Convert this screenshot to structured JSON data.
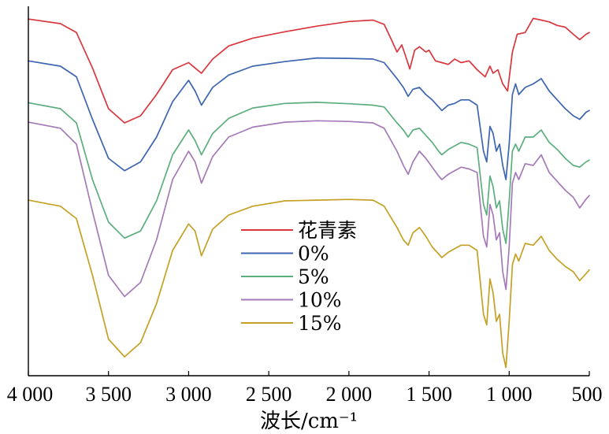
{
  "chart_data": {
    "type": "line",
    "title": "",
    "xlabel": "波长/cm⁻¹",
    "ylabel": "",
    "xlim": [
      4000,
      500
    ],
    "x_reversed": true,
    "x_ticks": [
      4000,
      3500,
      3000,
      2500,
      2000,
      1500,
      1000,
      500
    ],
    "x_tick_labels": [
      "4 000",
      "3 500",
      "3 000",
      "2 500",
      "2 000",
      "1 500",
      "1 000",
      "500"
    ],
    "ylim": [
      0,
      1
    ],
    "y_ticks_shown": false,
    "grid": false,
    "legend_position": "center",
    "series": [
      {
        "name": "花青素",
        "color": "#d9363e",
        "points": [
          [
            4000,
            0.973
          ],
          [
            3800,
            0.96
          ],
          [
            3700,
            0.935
          ],
          [
            3600,
            0.835
          ],
          [
            3500,
            0.72
          ],
          [
            3400,
            0.68
          ],
          [
            3300,
            0.7
          ],
          [
            3200,
            0.76
          ],
          [
            3100,
            0.83
          ],
          [
            3000,
            0.85
          ],
          [
            2960,
            0.835
          ],
          [
            2920,
            0.82
          ],
          [
            2850,
            0.86
          ],
          [
            2750,
            0.897
          ],
          [
            2600,
            0.919
          ],
          [
            2400,
            0.937
          ],
          [
            2200,
            0.953
          ],
          [
            2000,
            0.966
          ],
          [
            1850,
            0.97
          ],
          [
            1780,
            0.958
          ],
          [
            1730,
            0.91
          ],
          [
            1700,
            0.88
          ],
          [
            1670,
            0.9
          ],
          [
            1640,
            0.86
          ],
          [
            1620,
            0.832
          ],
          [
            1590,
            0.885
          ],
          [
            1560,
            0.895
          ],
          [
            1520,
            0.88
          ],
          [
            1500,
            0.885
          ],
          [
            1460,
            0.855
          ],
          [
            1420,
            0.85
          ],
          [
            1380,
            0.845
          ],
          [
            1340,
            0.86
          ],
          [
            1300,
            0.85
          ],
          [
            1250,
            0.855
          ],
          [
            1200,
            0.83
          ],
          [
            1150,
            0.81
          ],
          [
            1120,
            0.84
          ],
          [
            1100,
            0.82
          ],
          [
            1070,
            0.83
          ],
          [
            1040,
            0.79
          ],
          [
            1010,
            0.77
          ],
          [
            980,
            0.88
          ],
          [
            950,
            0.93
          ],
          [
            900,
            0.935
          ],
          [
            850,
            0.975
          ],
          [
            800,
            0.97
          ],
          [
            750,
            0.965
          ],
          [
            700,
            0.955
          ],
          [
            650,
            0.95
          ],
          [
            600,
            0.93
          ],
          [
            560,
            0.915
          ],
          [
            520,
            0.93
          ],
          [
            500,
            0.935
          ]
        ]
      },
      {
        "name": "0%",
        "color": "#3d65b0",
        "points": [
          [
            4000,
            0.855
          ],
          [
            3800,
            0.84
          ],
          [
            3700,
            0.81
          ],
          [
            3600,
            0.69
          ],
          [
            3500,
            0.58
          ],
          [
            3400,
            0.545
          ],
          [
            3300,
            0.57
          ],
          [
            3200,
            0.64
          ],
          [
            3100,
            0.74
          ],
          [
            3000,
            0.8
          ],
          [
            2960,
            0.77
          ],
          [
            2920,
            0.73
          ],
          [
            2850,
            0.78
          ],
          [
            2750,
            0.815
          ],
          [
            2600,
            0.84
          ],
          [
            2400,
            0.853
          ],
          [
            2200,
            0.863
          ],
          [
            2000,
            0.862
          ],
          [
            1850,
            0.86
          ],
          [
            1780,
            0.85
          ],
          [
            1700,
            0.805
          ],
          [
            1660,
            0.78
          ],
          [
            1630,
            0.755
          ],
          [
            1600,
            0.775
          ],
          [
            1560,
            0.78
          ],
          [
            1520,
            0.76
          ],
          [
            1480,
            0.745
          ],
          [
            1440,
            0.725
          ],
          [
            1420,
            0.715
          ],
          [
            1380,
            0.73
          ],
          [
            1340,
            0.735
          ],
          [
            1300,
            0.745
          ],
          [
            1250,
            0.745
          ],
          [
            1200,
            0.73
          ],
          [
            1160,
            0.6
          ],
          [
            1140,
            0.57
          ],
          [
            1120,
            0.67
          ],
          [
            1100,
            0.65
          ],
          [
            1080,
            0.6
          ],
          [
            1060,
            0.62
          ],
          [
            1040,
            0.56
          ],
          [
            1020,
            0.52
          ],
          [
            1000,
            0.62
          ],
          [
            980,
            0.76
          ],
          [
            960,
            0.79
          ],
          [
            940,
            0.76
          ],
          [
            900,
            0.78
          ],
          [
            850,
            0.79
          ],
          [
            800,
            0.805
          ],
          [
            750,
            0.77
          ],
          [
            700,
            0.745
          ],
          [
            650,
            0.72
          ],
          [
            600,
            0.7
          ],
          [
            560,
            0.69
          ],
          [
            520,
            0.71
          ],
          [
            500,
            0.715
          ]
        ]
      },
      {
        "name": "5%",
        "color": "#5dae7e",
        "points": [
          [
            4000,
            0.737
          ],
          [
            3800,
            0.72
          ],
          [
            3700,
            0.68
          ],
          [
            3600,
            0.52
          ],
          [
            3500,
            0.4
          ],
          [
            3400,
            0.355
          ],
          [
            3300,
            0.375
          ],
          [
            3200,
            0.46
          ],
          [
            3100,
            0.59
          ],
          [
            3000,
            0.66
          ],
          [
            2960,
            0.63
          ],
          [
            2920,
            0.59
          ],
          [
            2850,
            0.65
          ],
          [
            2750,
            0.693
          ],
          [
            2600,
            0.722
          ],
          [
            2400,
            0.735
          ],
          [
            2200,
            0.738
          ],
          [
            2000,
            0.734
          ],
          [
            1850,
            0.73
          ],
          [
            1780,
            0.725
          ],
          [
            1700,
            0.68
          ],
          [
            1660,
            0.66
          ],
          [
            1630,
            0.64
          ],
          [
            1600,
            0.66
          ],
          [
            1560,
            0.665
          ],
          [
            1520,
            0.645
          ],
          [
            1480,
            0.625
          ],
          [
            1440,
            0.6
          ],
          [
            1420,
            0.59
          ],
          [
            1380,
            0.605
          ],
          [
            1340,
            0.615
          ],
          [
            1300,
            0.625
          ],
          [
            1250,
            0.62
          ],
          [
            1200,
            0.61
          ],
          [
            1160,
            0.45
          ],
          [
            1140,
            0.42
          ],
          [
            1120,
            0.53
          ],
          [
            1100,
            0.5
          ],
          [
            1080,
            0.44
          ],
          [
            1060,
            0.46
          ],
          [
            1040,
            0.38
          ],
          [
            1020,
            0.34
          ],
          [
            1000,
            0.46
          ],
          [
            980,
            0.6
          ],
          [
            960,
            0.62
          ],
          [
            940,
            0.6
          ],
          [
            900,
            0.64
          ],
          [
            850,
            0.64
          ],
          [
            800,
            0.66
          ],
          [
            750,
            0.625
          ],
          [
            700,
            0.605
          ],
          [
            650,
            0.58
          ],
          [
            600,
            0.56
          ],
          [
            560,
            0.555
          ],
          [
            520,
            0.57
          ],
          [
            500,
            0.575
          ]
        ]
      },
      {
        "name": "10%",
        "color": "#a47ab8",
        "points": [
          [
            4000,
            0.682
          ],
          [
            3800,
            0.665
          ],
          [
            3700,
            0.62
          ],
          [
            3600,
            0.43
          ],
          [
            3500,
            0.25
          ],
          [
            3400,
            0.19
          ],
          [
            3300,
            0.23
          ],
          [
            3200,
            0.35
          ],
          [
            3100,
            0.52
          ],
          [
            3000,
            0.6
          ],
          [
            2960,
            0.57
          ],
          [
            2920,
            0.51
          ],
          [
            2850,
            0.585
          ],
          [
            2750,
            0.64
          ],
          [
            2600,
            0.668
          ],
          [
            2400,
            0.682
          ],
          [
            2200,
            0.686
          ],
          [
            2000,
            0.684
          ],
          [
            1850,
            0.68
          ],
          [
            1780,
            0.665
          ],
          [
            1700,
            0.6
          ],
          [
            1660,
            0.56
          ],
          [
            1630,
            0.535
          ],
          [
            1600,
            0.57
          ],
          [
            1560,
            0.6
          ],
          [
            1520,
            0.58
          ],
          [
            1480,
            0.555
          ],
          [
            1440,
            0.53
          ],
          [
            1420,
            0.52
          ],
          [
            1380,
            0.535
          ],
          [
            1340,
            0.545
          ],
          [
            1300,
            0.555
          ],
          [
            1250,
            0.55
          ],
          [
            1200,
            0.54
          ],
          [
            1160,
            0.36
          ],
          [
            1140,
            0.33
          ],
          [
            1120,
            0.45
          ],
          [
            1100,
            0.42
          ],
          [
            1080,
            0.35
          ],
          [
            1060,
            0.37
          ],
          [
            1040,
            0.26
          ],
          [
            1020,
            0.21
          ],
          [
            1000,
            0.33
          ],
          [
            980,
            0.51
          ],
          [
            960,
            0.54
          ],
          [
            940,
            0.52
          ],
          [
            900,
            0.565
          ],
          [
            850,
            0.56
          ],
          [
            800,
            0.59
          ],
          [
            750,
            0.54
          ],
          [
            700,
            0.515
          ],
          [
            650,
            0.49
          ],
          [
            600,
            0.47
          ],
          [
            560,
            0.44
          ],
          [
            520,
            0.465
          ],
          [
            500,
            0.475
          ]
        ]
      },
      {
        "name": "15%",
        "color": "#c4a125",
        "points": [
          [
            4000,
            0.462
          ],
          [
            3800,
            0.445
          ],
          [
            3700,
            0.41
          ],
          [
            3600,
            0.25
          ],
          [
            3500,
            0.07
          ],
          [
            3400,
            0.02
          ],
          [
            3300,
            0.06
          ],
          [
            3200,
            0.17
          ],
          [
            3100,
            0.32
          ],
          [
            3000,
            0.395
          ],
          [
            2960,
            0.375
          ],
          [
            2920,
            0.305
          ],
          [
            2850,
            0.38
          ],
          [
            2750,
            0.42
          ],
          [
            2600,
            0.445
          ],
          [
            2400,
            0.46
          ],
          [
            2200,
            0.462
          ],
          [
            2000,
            0.464
          ],
          [
            1850,
            0.462
          ],
          [
            1780,
            0.445
          ],
          [
            1700,
            0.385
          ],
          [
            1660,
            0.35
          ],
          [
            1630,
            0.335
          ],
          [
            1600,
            0.37
          ],
          [
            1560,
            0.385
          ],
          [
            1520,
            0.36
          ],
          [
            1480,
            0.33
          ],
          [
            1440,
            0.31
          ],
          [
            1420,
            0.3
          ],
          [
            1380,
            0.315
          ],
          [
            1340,
            0.325
          ],
          [
            1300,
            0.335
          ],
          [
            1250,
            0.335
          ],
          [
            1200,
            0.32
          ],
          [
            1160,
            0.14
          ],
          [
            1140,
            0.11
          ],
          [
            1120,
            0.24
          ],
          [
            1100,
            0.2
          ],
          [
            1080,
            0.12
          ],
          [
            1060,
            0.14
          ],
          [
            1040,
            0.03
          ],
          [
            1020,
            -0.01
          ],
          [
            1000,
            0.12
          ],
          [
            980,
            0.28
          ],
          [
            960,
            0.31
          ],
          [
            940,
            0.29
          ],
          [
            900,
            0.34
          ],
          [
            850,
            0.335
          ],
          [
            800,
            0.36
          ],
          [
            750,
            0.32
          ],
          [
            700,
            0.295
          ],
          [
            650,
            0.275
          ],
          [
            600,
            0.26
          ],
          [
            560,
            0.235
          ],
          [
            520,
            0.255
          ],
          [
            500,
            0.265
          ]
        ]
      }
    ]
  }
}
